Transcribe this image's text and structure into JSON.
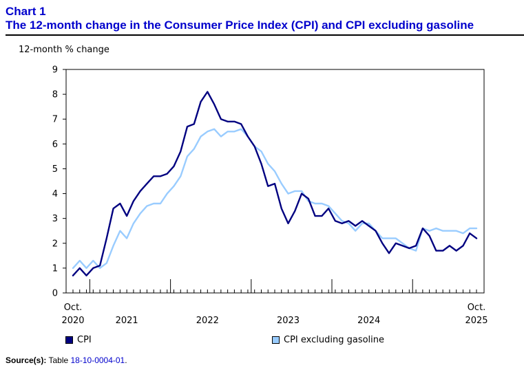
{
  "header": {
    "chart_number": "Chart 1",
    "title": "The 12-month change in the Consumer Price Index (CPI) and CPI excluding gasoline"
  },
  "source": {
    "label": "Source(s):",
    "text": "Table",
    "link_text": "18-10-0004-01",
    "suffix": "."
  },
  "chart_data": {
    "type": "line",
    "title": "The 12-month change in the Consumer Price Index (CPI) and CPI excluding gasoline",
    "ylabel": "12-month % change",
    "xlabel": "",
    "ylim": [
      0,
      9
    ],
    "yticks": [
      0,
      1,
      2,
      3,
      4,
      5,
      6,
      7,
      8,
      9
    ],
    "grid": false,
    "legend_position": "bottom",
    "x_start": "2020-10",
    "x_end": "2025-10",
    "x_tick_labels": [
      {
        "month": "2020-10",
        "line1": "Oct.",
        "line2": "2020"
      },
      {
        "month": "2021-06",
        "line1": "",
        "line2": "2021"
      },
      {
        "month": "2022-06",
        "line1": "",
        "line2": "2022"
      },
      {
        "month": "2023-06",
        "line1": "",
        "line2": "2023"
      },
      {
        "month": "2024-06",
        "line1": "",
        "line2": "2024"
      },
      {
        "month": "2025-10",
        "line1": "Oct.",
        "line2": "2025"
      }
    ],
    "year_boundaries": [
      "2021-01",
      "2022-01",
      "2023-01",
      "2024-01",
      "2025-01"
    ],
    "series": [
      {
        "name": "CPI",
        "color": "#000080",
        "values": [
          0.7,
          1.0,
          0.7,
          1.0,
          1.1,
          2.2,
          3.4,
          3.6,
          3.1,
          3.7,
          4.1,
          4.4,
          4.7,
          4.7,
          4.8,
          5.1,
          5.7,
          6.7,
          6.8,
          7.7,
          8.1,
          7.6,
          7.0,
          6.9,
          6.9,
          6.8,
          6.3,
          5.9,
          5.2,
          4.3,
          4.4,
          3.4,
          2.8,
          3.3,
          4.0,
          3.8,
          3.1,
          3.1,
          3.4,
          2.9,
          2.8,
          2.9,
          2.7,
          2.9,
          2.7,
          2.5,
          2.0,
          1.6,
          2.0,
          1.9,
          1.8,
          1.9,
          2.6,
          2.3,
          1.7,
          1.7,
          1.9,
          1.7,
          1.9,
          2.4,
          2.2
        ]
      },
      {
        "name": "CPI excluding gasoline",
        "color": "#99CCFF",
        "values": [
          1.0,
          1.3,
          1.0,
          1.3,
          1.0,
          1.2,
          1.9,
          2.5,
          2.2,
          2.8,
          3.2,
          3.5,
          3.6,
          3.6,
          4.0,
          4.3,
          4.7,
          5.5,
          5.8,
          6.3,
          6.5,
          6.6,
          6.3,
          6.5,
          6.5,
          6.6,
          6.3,
          5.9,
          5.7,
          5.2,
          4.9,
          4.4,
          4.0,
          4.1,
          4.1,
          3.7,
          3.6,
          3.6,
          3.5,
          3.2,
          2.9,
          2.8,
          2.5,
          2.8,
          2.8,
          2.5,
          2.2,
          2.2,
          2.2,
          2.0,
          1.8,
          1.7,
          2.6,
          2.5,
          2.6,
          2.5,
          2.5,
          2.5,
          2.4,
          2.6,
          2.6
        ]
      }
    ]
  }
}
